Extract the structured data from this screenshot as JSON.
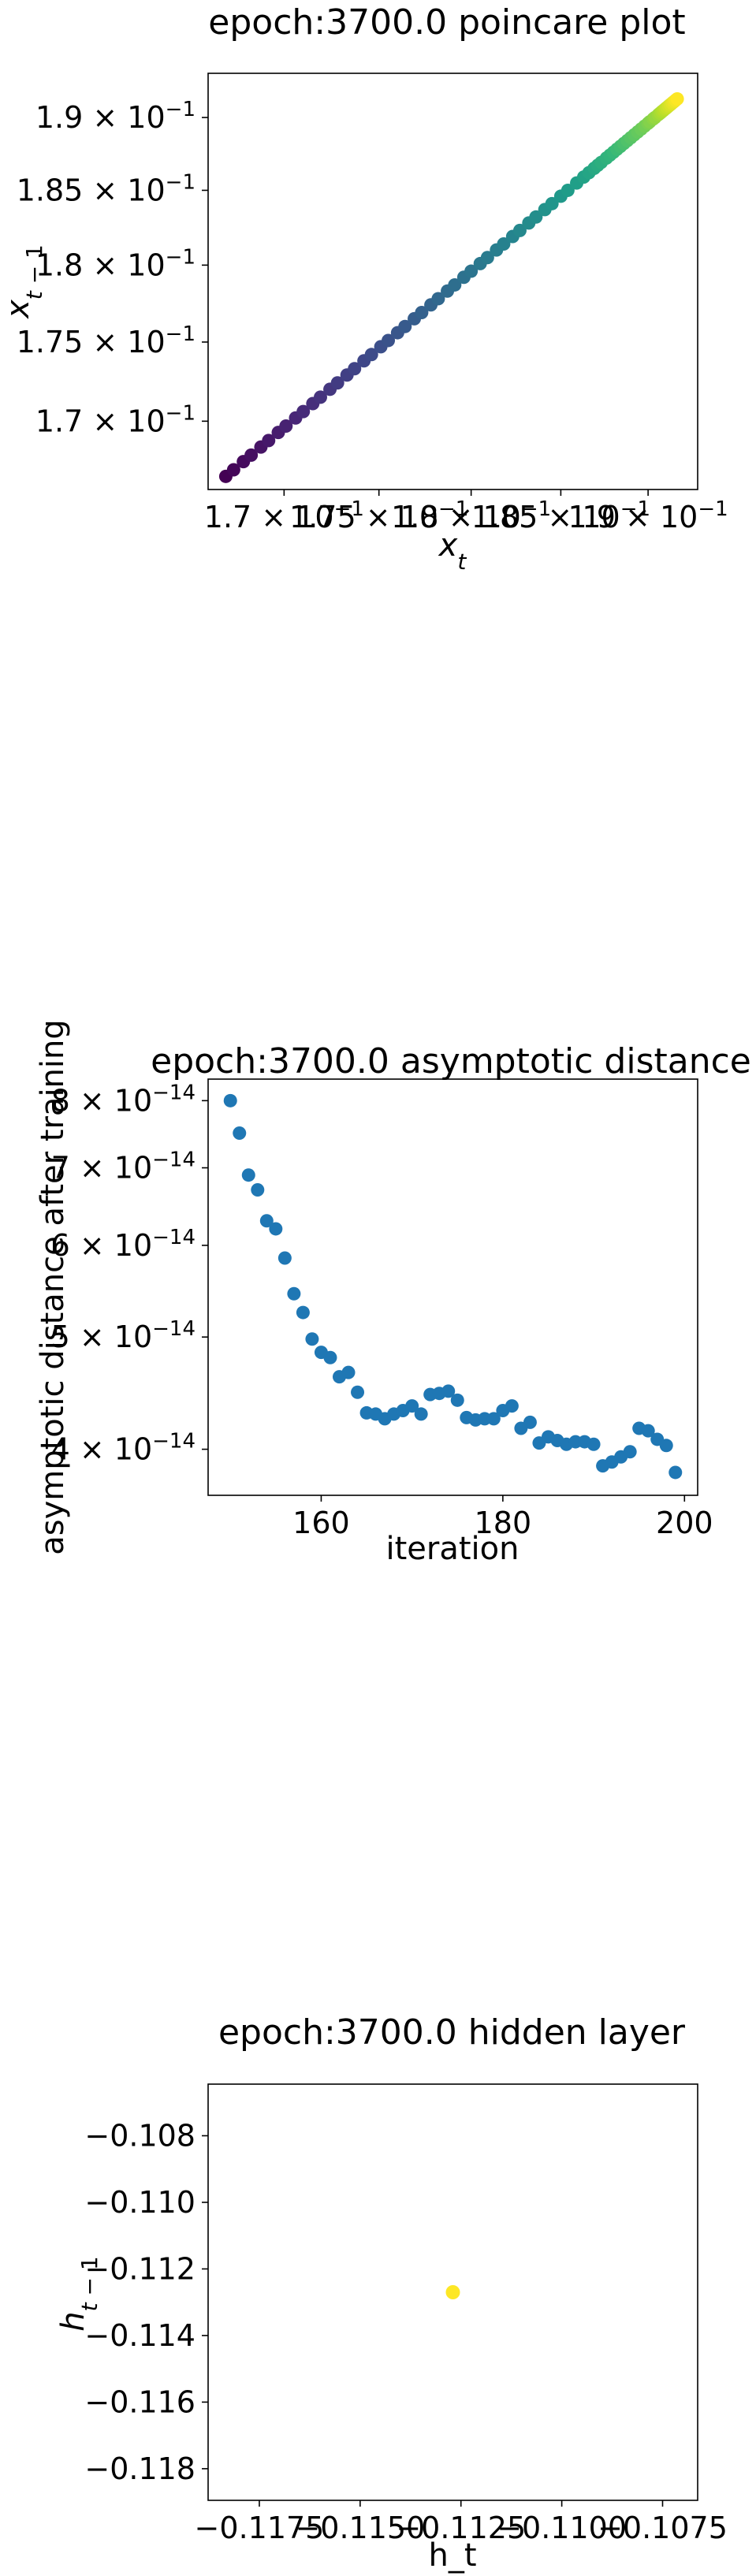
{
  "chart_data": [
    {
      "type": "scatter",
      "title": "epoch:3700.0 poincare plot",
      "xlabel": "x_t",
      "ylabel": "x_{t-1}",
      "xscale": "log",
      "yscale": "log",
      "xlim": [
        0.1661,
        0.1929
      ],
      "ylim": [
        0.1658,
        0.1931
      ],
      "xticks": [
        {
          "v": 0.17,
          "base": "1.7",
          "exp": "−1"
        },
        {
          "v": 0.175,
          "base": "1.75",
          "exp": "−1"
        },
        {
          "v": 0.18,
          "base": "1.8",
          "exp": "−1"
        },
        {
          "v": 0.185,
          "base": "1.85",
          "exp": "−1"
        },
        {
          "v": 0.19,
          "base": "1.9",
          "exp": "−1"
        }
      ],
      "yticks": [
        {
          "v": 0.17,
          "base": "1.7",
          "exp": "−1"
        },
        {
          "v": 0.175,
          "base": "1.75",
          "exp": "−1"
        },
        {
          "v": 0.18,
          "base": "1.8",
          "exp": "−1"
        },
        {
          "v": 0.185,
          "base": "1.85",
          "exp": "−1"
        },
        {
          "v": 0.19,
          "base": "1.9",
          "exp": "−1"
        }
      ],
      "colormap": "viridis",
      "x": [
        0.167,
        0.1674,
        0.1679,
        0.1683,
        0.1688,
        0.1692,
        0.1697,
        0.1701,
        0.1706,
        0.171,
        0.1715,
        0.1719,
        0.1724,
        0.1728,
        0.1733,
        0.1737,
        0.1742,
        0.1746,
        0.1751,
        0.1755,
        0.176,
        0.1764,
        0.1769,
        0.1773,
        0.1778,
        0.1782,
        0.1787,
        0.1791,
        0.1796,
        0.18,
        0.1805,
        0.1809,
        0.1814,
        0.1818,
        0.1823,
        0.1827,
        0.1832,
        0.1836,
        0.1841,
        0.1845,
        0.185,
        0.1854,
        0.1859,
        0.1863,
        0.1866,
        0.1869,
        0.1871,
        0.1873,
        0.1876,
        0.1878,
        0.188,
        0.1882,
        0.1884,
        0.1886,
        0.1888,
        0.189,
        0.1892,
        0.1894,
        0.1896,
        0.1898,
        0.19,
        0.1901,
        0.1903,
        0.1904,
        0.1906,
        0.1907,
        0.1908,
        0.1909,
        0.191,
        0.1911,
        0.1912,
        0.1913,
        0.1914,
        0.1915,
        0.1916,
        0.1917
      ],
      "y": [
        0.1666,
        0.167,
        0.1675,
        0.1679,
        0.1684,
        0.1688,
        0.1693,
        0.1697,
        0.1702,
        0.1706,
        0.1711,
        0.1715,
        0.172,
        0.1724,
        0.1729,
        0.1733,
        0.1738,
        0.1742,
        0.1747,
        0.1751,
        0.1756,
        0.176,
        0.1765,
        0.1769,
        0.1774,
        0.1778,
        0.1783,
        0.1787,
        0.1792,
        0.1796,
        0.1801,
        0.1805,
        0.181,
        0.1814,
        0.1819,
        0.1823,
        0.1828,
        0.1832,
        0.1837,
        0.1841,
        0.1846,
        0.185,
        0.1855,
        0.1859,
        0.1862,
        0.1865,
        0.1867,
        0.1869,
        0.1872,
        0.1874,
        0.1876,
        0.1878,
        0.188,
        0.1882,
        0.1884,
        0.1886,
        0.1888,
        0.189,
        0.1892,
        0.1894,
        0.1896,
        0.1897,
        0.1899,
        0.19,
        0.1902,
        0.1903,
        0.1904,
        0.1905,
        0.1906,
        0.1907,
        0.1908,
        0.1909,
        0.191,
        0.1911,
        0.1912,
        0.1913
      ]
    },
    {
      "type": "scatter",
      "title": "epoch:3700.0 asymptotic distance",
      "xlabel": "iteration",
      "ylabel": "asymptotic distance after training",
      "xscale": "linear",
      "yscale": "log",
      "xlim": [
        147.55,
        201.45
      ],
      "ylim": [
        3.65e-14,
        8.35e-14
      ],
      "xticks": [
        {
          "v": 160,
          "label": "160"
        },
        {
          "v": 180,
          "label": "180"
        },
        {
          "v": 200,
          "label": "200"
        }
      ],
      "yticks": [
        {
          "v": 4e-14,
          "base": "4",
          "exp": "−14"
        },
        {
          "v": 5e-14,
          "base": "5",
          "exp": "−14"
        },
        {
          "v": 6e-14,
          "base": "6",
          "exp": "−14"
        },
        {
          "v": 7e-14,
          "base": "7",
          "exp": "−14"
        },
        {
          "v": 8e-14,
          "base": "8",
          "exp": "−14"
        }
      ],
      "color": "#1f77b4",
      "x": [
        150,
        151,
        152,
        153,
        154,
        155,
        156,
        157,
        158,
        159,
        160,
        161,
        162,
        163,
        164,
        165,
        166,
        167,
        168,
        169,
        170,
        171,
        172,
        173,
        174,
        175,
        176,
        177,
        178,
        179,
        180,
        181,
        182,
        183,
        184,
        185,
        186,
        187,
        188,
        189,
        190,
        191,
        192,
        193,
        194,
        195,
        196,
        197,
        198,
        199
      ],
      "y": [
        8e-14,
        7.5e-14,
        6.9e-14,
        6.7e-14,
        6.3e-14,
        6.2e-14,
        5.85e-14,
        5.45e-14,
        5.25e-14,
        4.98e-14,
        4.85e-14,
        4.8e-14,
        4.62e-14,
        4.66e-14,
        4.48e-14,
        4.3e-14,
        4.29e-14,
        4.25e-14,
        4.29e-14,
        4.32e-14,
        4.36e-14,
        4.29e-14,
        4.46e-14,
        4.47e-14,
        4.49e-14,
        4.41e-14,
        4.26e-14,
        4.24e-14,
        4.25e-14,
        4.25e-14,
        4.32e-14,
        4.36e-14,
        4.17e-14,
        4.22e-14,
        4.05e-14,
        4.1e-14,
        4.07e-14,
        4.04e-14,
        4.06e-14,
        4.06e-14,
        4.04e-14,
        3.87e-14,
        3.9e-14,
        3.94e-14,
        3.98e-14,
        4.17e-14,
        4.15e-14,
        4.08e-14,
        4.03e-14,
        3.82e-14
      ]
    },
    {
      "type": "scatter",
      "title": "epoch:3700.0 hidden layer",
      "xlabel": "h_t",
      "ylabel": "h_{t-1}",
      "xscale": "linear",
      "yscale": "linear",
      "xlim": [
        -0.11877,
        -0.10663
      ],
      "ylim": [
        -0.11895,
        -0.10645
      ],
      "xticks": [
        {
          "v": -0.1175,
          "label": "−0.1175"
        },
        {
          "v": -0.115,
          "label": "−0.1150"
        },
        {
          "v": -0.1125,
          "label": "−0.1125"
        },
        {
          "v": -0.11,
          "label": "−0.1100"
        },
        {
          "v": -0.1075,
          "label": "−0.1075"
        }
      ],
      "yticks": [
        {
          "v": -0.108,
          "label": "−0.108"
        },
        {
          "v": -0.11,
          "label": "−0.110"
        },
        {
          "v": -0.112,
          "label": "−0.112"
        },
        {
          "v": -0.114,
          "label": "−0.114"
        },
        {
          "v": -0.116,
          "label": "−0.116"
        },
        {
          "v": -0.118,
          "label": "−0.118"
        }
      ],
      "color": "#fde725",
      "x": [
        -0.1127
      ],
      "y": [
        -0.1127
      ]
    }
  ]
}
